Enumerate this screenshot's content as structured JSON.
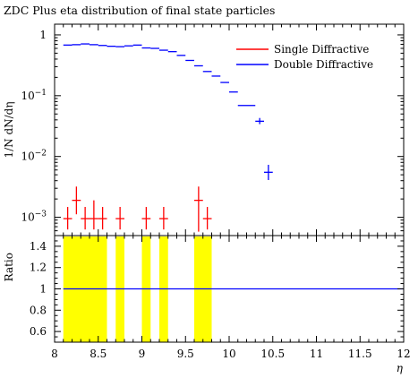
{
  "chart_data": {
    "type": "scatter",
    "title": "ZDC Plus eta distribution of final state particles",
    "main_panel": {
      "ylabel": "1/N dN/dη",
      "yscale": "log",
      "ylim": [
        0.0005,
        1.5
      ],
      "yticks": [
        {
          "value": 1,
          "mantissa": "1",
          "exponent": ""
        },
        {
          "value": 0.1,
          "mantissa": "10",
          "exponent": "−1"
        },
        {
          "value": 0.01,
          "mantissa": "10",
          "exponent": "−2"
        },
        {
          "value": 0.001,
          "mantissa": "10",
          "exponent": "−3"
        }
      ],
      "legend": {
        "position": "top-right"
      },
      "series": [
        {
          "name": "Single Diffractive",
          "color": "#ff0000",
          "points": [
            {
              "x": 8.15,
              "xerr": 0.05,
              "y": 0.00095,
              "ylo": 0.00063,
              "yhi": 0.00148
            },
            {
              "x": 8.25,
              "xerr": 0.05,
              "y": 0.0019,
              "ylo": 0.00112,
              "yhi": 0.0032
            },
            {
              "x": 8.35,
              "xerr": 0.05,
              "y": 0.00095,
              "ylo": 0.00063,
              "yhi": 0.00148
            },
            {
              "x": 8.45,
              "xerr": 0.05,
              "y": 0.00095,
              "ylo": 0.00063,
              "yhi": 0.0019
            },
            {
              "x": 8.55,
              "xerr": 0.05,
              "y": 0.00095,
              "ylo": 0.00063,
              "yhi": 0.00148
            },
            {
              "x": 8.75,
              "xerr": 0.05,
              "y": 0.00095,
              "ylo": 0.00063,
              "yhi": 0.00148
            },
            {
              "x": 9.05,
              "xerr": 0.05,
              "y": 0.00095,
              "ylo": 0.00063,
              "yhi": 0.00148
            },
            {
              "x": 9.25,
              "xerr": 0.05,
              "y": 0.00095,
              "ylo": 0.00063,
              "yhi": 0.00148
            },
            {
              "x": 9.65,
              "xerr": 0.05,
              "y": 0.0019,
              "ylo": 0.00058,
              "yhi": 0.0032
            },
            {
              "x": 9.75,
              "xerr": 0.05,
              "y": 0.00095,
              "ylo": 0.00063,
              "yhi": 0.00148
            }
          ]
        },
        {
          "name": "Double Diffractive",
          "color": "#0000ff",
          "points": [
            {
              "x": 8.15,
              "xerr": 0.05,
              "y": 0.68
            },
            {
              "x": 8.25,
              "xerr": 0.05,
              "y": 0.69
            },
            {
              "x": 8.35,
              "xerr": 0.05,
              "y": 0.71
            },
            {
              "x": 8.45,
              "xerr": 0.05,
              "y": 0.69
            },
            {
              "x": 8.55,
              "xerr": 0.05,
              "y": 0.67
            },
            {
              "x": 8.65,
              "xerr": 0.05,
              "y": 0.65
            },
            {
              "x": 8.75,
              "xerr": 0.05,
              "y": 0.64
            },
            {
              "x": 8.85,
              "xerr": 0.05,
              "y": 0.66
            },
            {
              "x": 8.95,
              "xerr": 0.05,
              "y": 0.68
            },
            {
              "x": 9.05,
              "xerr": 0.05,
              "y": 0.61
            },
            {
              "x": 9.15,
              "xerr": 0.05,
              "y": 0.6
            },
            {
              "x": 9.25,
              "xerr": 0.05,
              "y": 0.56
            },
            {
              "x": 9.35,
              "xerr": 0.05,
              "y": 0.53
            },
            {
              "x": 9.45,
              "xerr": 0.05,
              "y": 0.46
            },
            {
              "x": 9.55,
              "xerr": 0.05,
              "y": 0.38
            },
            {
              "x": 9.65,
              "xerr": 0.05,
              "y": 0.31
            },
            {
              "x": 9.75,
              "xerr": 0.05,
              "y": 0.25
            },
            {
              "x": 9.85,
              "xerr": 0.05,
              "y": 0.21
            },
            {
              "x": 9.95,
              "xerr": 0.05,
              "y": 0.165
            },
            {
              "x": 10.05,
              "xerr": 0.05,
              "y": 0.115
            },
            {
              "x": 10.15,
              "xerr": 0.05,
              "y": 0.069
            },
            {
              "x": 10.25,
              "xerr": 0.05,
              "y": 0.069
            },
            {
              "x": 10.35,
              "xerr": 0.05,
              "y": 0.038,
              "ylo": 0.034,
              "yhi": 0.043
            },
            {
              "x": 10.45,
              "xerr": 0.05,
              "y": 0.0055,
              "ylo": 0.0041,
              "yhi": 0.0073
            }
          ]
        }
      ]
    },
    "ratio_panel": {
      "ylabel": "Ratio",
      "ylim": [
        0.5,
        1.5
      ],
      "yticks": [
        {
          "value": 1.4,
          "label": "1.4"
        },
        {
          "value": 1.2,
          "label": "1.2"
        },
        {
          "value": 1.0,
          "label": "1"
        },
        {
          "value": 0.8,
          "label": "0.8"
        },
        {
          "value": 0.6,
          "label": "0.6"
        }
      ],
      "reference_line": {
        "value": 1.0,
        "color": "#0000ff"
      },
      "band_color": "#ffff00",
      "bands": [
        {
          "x0": 8.1,
          "x1": 8.6
        },
        {
          "x0": 8.7,
          "x1": 8.8
        },
        {
          "x0": 9.0,
          "x1": 9.1
        },
        {
          "x0": 9.2,
          "x1": 9.3
        },
        {
          "x0": 9.6,
          "x1": 9.8
        }
      ]
    },
    "x_axis": {
      "xlabel": "η",
      "xlim": [
        8,
        12
      ],
      "xticks": [
        {
          "value": 8,
          "label": "8"
        },
        {
          "value": 8.5,
          "label": "8.5"
        },
        {
          "value": 9,
          "label": "9"
        },
        {
          "value": 9.5,
          "label": "9.5"
        },
        {
          "value": 10,
          "label": "10"
        },
        {
          "value": 10.5,
          "label": "10.5"
        },
        {
          "value": 11,
          "label": "11"
        },
        {
          "value": 11.5,
          "label": "11.5"
        },
        {
          "value": 12,
          "label": "12"
        }
      ]
    }
  }
}
